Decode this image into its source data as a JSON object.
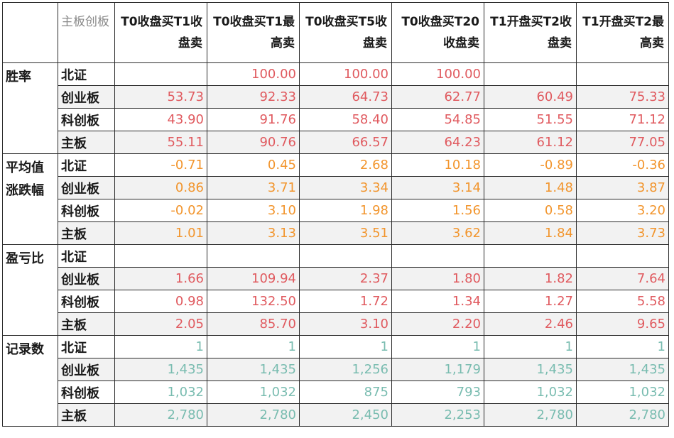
{
  "corner_label": "主板创板",
  "columns": [
    "T0收盘买T1收盘卖",
    "T0收盘买T1最高卖",
    "T0收盘买T5收盘卖",
    "T0收盘买T20收盘卖",
    "T1开盘买T2收盘卖",
    "T1开盘买T2最高卖"
  ],
  "groups": [
    {
      "metric": "胜率",
      "rows": [
        {
          "board": "北证",
          "values": [
            "",
            "100.00",
            "100.00",
            "100.00",
            "",
            ""
          ]
        },
        {
          "board": "创业板",
          "values": [
            "53.73",
            "92.33",
            "64.73",
            "62.77",
            "60.49",
            "75.33"
          ]
        },
        {
          "board": "科创板",
          "values": [
            "43.90",
            "91.76",
            "58.40",
            "54.85",
            "51.55",
            "71.12"
          ]
        },
        {
          "board": "主板",
          "values": [
            "55.11",
            "90.76",
            "66.57",
            "64.23",
            "61.12",
            "77.05"
          ]
        }
      ]
    },
    {
      "metric": "平均值涨跌幅",
      "rows": [
        {
          "board": "北证",
          "values": [
            "-0.71",
            "0.45",
            "2.68",
            "10.18",
            "-0.89",
            "-0.36"
          ]
        },
        {
          "board": "创业板",
          "values": [
            "0.86",
            "3.71",
            "3.34",
            "3.14",
            "1.48",
            "3.87"
          ]
        },
        {
          "board": "科创板",
          "values": [
            "-0.02",
            "3.10",
            "1.98",
            "1.56",
            "0.58",
            "3.20"
          ]
        },
        {
          "board": "主板",
          "values": [
            "1.01",
            "3.13",
            "3.51",
            "3.62",
            "1.84",
            "3.73"
          ]
        }
      ]
    },
    {
      "metric": "盈亏比",
      "rows": [
        {
          "board": "北证",
          "values": [
            "",
            "",
            "",
            "",
            "",
            ""
          ]
        },
        {
          "board": "创业板",
          "values": [
            "1.66",
            "109.94",
            "2.37",
            "1.80",
            "1.82",
            "7.64"
          ]
        },
        {
          "board": "科创板",
          "values": [
            "0.98",
            "132.50",
            "1.72",
            "1.34",
            "1.27",
            "5.58"
          ]
        },
        {
          "board": "主板",
          "values": [
            "2.05",
            "85.70",
            "3.10",
            "2.20",
            "2.46",
            "9.65"
          ]
        }
      ]
    },
    {
      "metric": "记录数",
      "rows": [
        {
          "board": "北证",
          "values": [
            "1",
            "1",
            "1",
            "1",
            "1",
            "1"
          ]
        },
        {
          "board": "创业板",
          "values": [
            "1,435",
            "1,435",
            "1,256",
            "1,179",
            "1,435",
            "1,435"
          ]
        },
        {
          "board": "科创板",
          "values": [
            "1,032",
            "1,032",
            "875",
            "793",
            "1,032",
            "1,032"
          ]
        },
        {
          "board": "主板",
          "values": [
            "2,780",
            "2,780",
            "2,450",
            "2,253",
            "2,780",
            "2,780"
          ]
        }
      ]
    }
  ],
  "colors": {
    "win_rate": "#e05a5f",
    "avg_change": "#f2952d",
    "profit_loss_ratio": "#e05a5f",
    "record_count": "#79bcb0",
    "alt_row_bg": "#f2f2f2"
  }
}
